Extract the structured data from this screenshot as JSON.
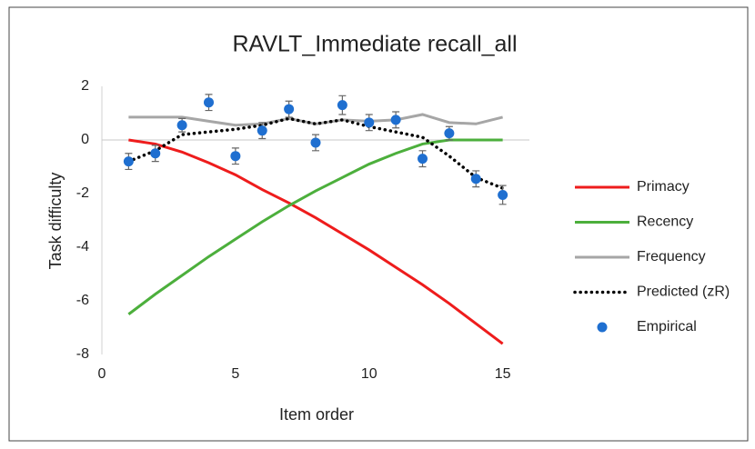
{
  "chart_data": {
    "type": "line",
    "title": "RAVLT_Immediate recall_all",
    "xlabel": "Item order",
    "ylabel": "Task difficulty",
    "x": [
      1,
      2,
      3,
      4,
      5,
      6,
      7,
      8,
      9,
      10,
      11,
      12,
      13,
      14,
      15
    ],
    "xlim": [
      0,
      16
    ],
    "xticks": [
      0,
      5,
      10,
      15
    ],
    "ylim": [
      -8,
      2
    ],
    "yticks": [
      -8,
      -6,
      -4,
      -2,
      0,
      2
    ],
    "grid": false,
    "legend": "right",
    "series": [
      {
        "name": "Primacy",
        "color": "#ee1c1c",
        "style": "solid",
        "values": [
          0,
          -0.15,
          -0.45,
          -0.85,
          -1.3,
          -1.85,
          -2.35,
          -2.9,
          -3.5,
          -4.1,
          -4.75,
          -5.4,
          -6.1,
          -6.85,
          -7.6
        ]
      },
      {
        "name": "Recency",
        "color": "#4caf3c",
        "style": "solid",
        "values": [
          -6.5,
          -5.75,
          -5.05,
          -4.35,
          -3.7,
          -3.05,
          -2.45,
          -1.9,
          -1.4,
          -0.9,
          -0.5,
          -0.15,
          0,
          0,
          0
        ]
      },
      {
        "name": "Frequency",
        "color": "#a6a6a6",
        "style": "solid",
        "values": [
          0.85,
          0.85,
          0.85,
          0.7,
          0.55,
          0.6,
          0.8,
          0.6,
          0.75,
          0.7,
          0.75,
          0.95,
          0.65,
          0.6,
          0.85
        ]
      },
      {
        "name": "Predicted (zR)",
        "color": "#000000",
        "style": "dotted",
        "values": [
          -0.8,
          -0.4,
          0.2,
          0.3,
          0.4,
          0.55,
          0.8,
          0.6,
          0.75,
          0.5,
          0.3,
          0.1,
          -0.6,
          -1.4,
          -1.8
        ]
      },
      {
        "name": "Empirical",
        "color": "#1f6fd0",
        "style": "markers",
        "values": [
          -0.8,
          -0.5,
          0.55,
          1.4,
          -0.6,
          0.35,
          1.15,
          -0.1,
          1.3,
          0.65,
          0.75,
          -0.7,
          0.25,
          -1.45,
          -2.05
        ],
        "errors": [
          0.3,
          0.3,
          0.25,
          0.3,
          0.3,
          0.3,
          0.3,
          0.3,
          0.35,
          0.3,
          0.3,
          0.3,
          0.25,
          0.3,
          0.35
        ]
      }
    ]
  }
}
